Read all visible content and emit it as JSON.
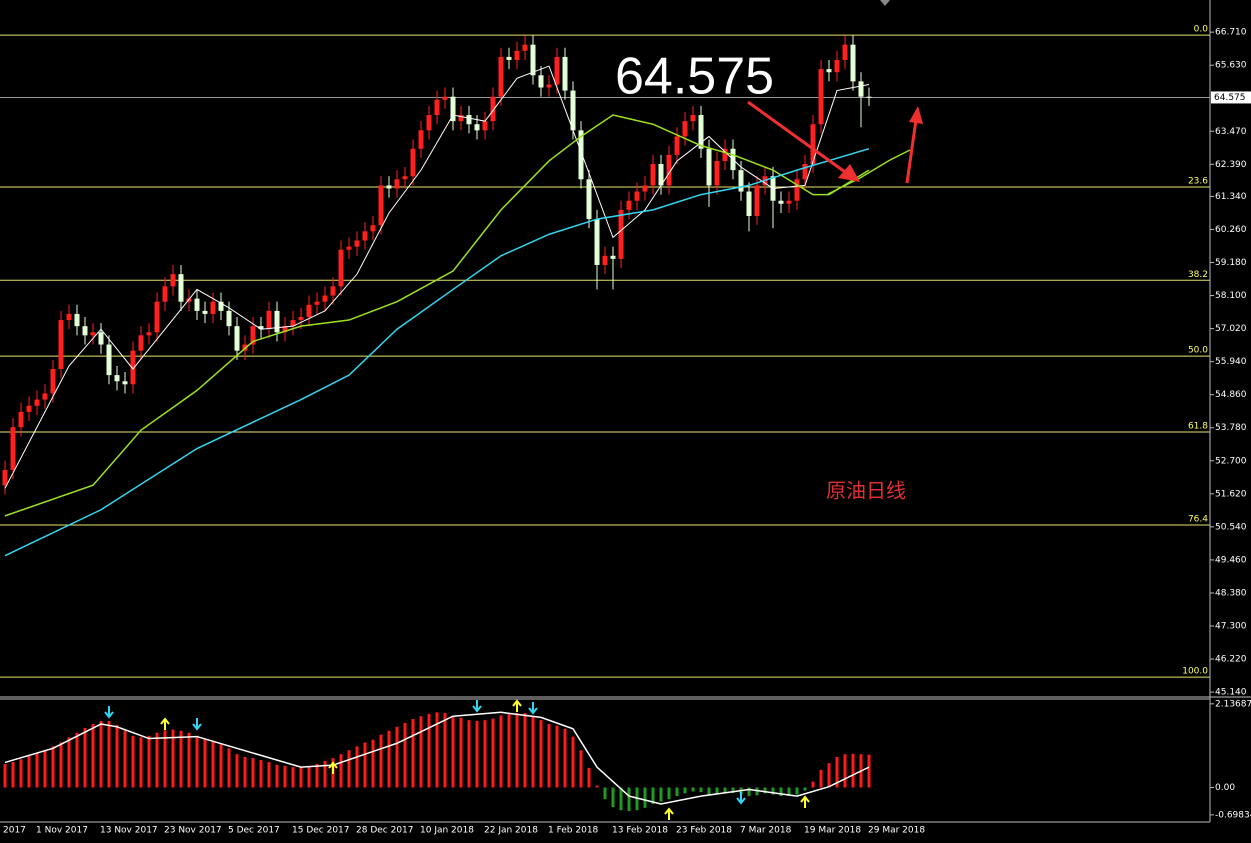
{
  "chart_data": [
    {
      "type": "candlestick",
      "categories": [
        "2017",
        null,
        null,
        null,
        "1 Nov 2017",
        null,
        null,
        null,
        null,
        null,
        null,
        null,
        "13 Nov 2017",
        null,
        null,
        null,
        null,
        null,
        null,
        null,
        "23 Nov 2017",
        null,
        null,
        null,
        null,
        null,
        null,
        null,
        "5 Dec 2017",
        null,
        null,
        null,
        null,
        null,
        null,
        null,
        "15 Dec 2017",
        null,
        null,
        null,
        null,
        null,
        null,
        null,
        "28 Dec 2017",
        null,
        null,
        null,
        null,
        null,
        null,
        null,
        "10 Jan 2018",
        null,
        null,
        null,
        null,
        null,
        null,
        null,
        "22 Jan 2018",
        null,
        null,
        null,
        null,
        null,
        null,
        null,
        "1 Feb 2018",
        null,
        null,
        null,
        null,
        null,
        null,
        null,
        "13 Feb 2018",
        null,
        null,
        null,
        null,
        null,
        null,
        null,
        "23 Feb 2018",
        null,
        null,
        null,
        null,
        null,
        null,
        null,
        "7 Mar 2018",
        null,
        null,
        null,
        null,
        null,
        null,
        null,
        "19 Mar 2018",
        null,
        null,
        null,
        null,
        null,
        null,
        null,
        "29 Mar 2018"
      ],
      "open": [
        51.9,
        52.4,
        53.8,
        54.3,
        54.5,
        54.7,
        54.9,
        55.7,
        57.3,
        57.5,
        57.1,
        56.8,
        56.9,
        56.5,
        55.5,
        55.3,
        55.2,
        56.3,
        56.8,
        56.9,
        57.9,
        58.4,
        58.8,
        57.9,
        58.0,
        57.6,
        57.5,
        57.9,
        57.6,
        57.1,
        56.3,
        56.5,
        57.1,
        57.0,
        57.6,
        56.9,
        57.1,
        57.3,
        57.4,
        57.8,
        57.9,
        58.1,
        58.4,
        59.6,
        59.7,
        59.9,
        60.2,
        60.4,
        61.7,
        61.6,
        61.9,
        62.0,
        62.9,
        63.5,
        64.0,
        64.5,
        64.6,
        63.8,
        64.0,
        63.7,
        63.5,
        63.8,
        64.6,
        65.9,
        65.8,
        66.1,
        66.3,
        65.3,
        64.9,
        65.0,
        65.9,
        64.8,
        63.5,
        61.9,
        60.6,
        59.1,
        59.4,
        59.3,
        60.9,
        61.2,
        61.5,
        61.7,
        62.4,
        61.7,
        62.7,
        63.3,
        63.8,
        64.0,
        62.9,
        61.7,
        62.5,
        62.9,
        62.2,
        61.5,
        60.7,
        61.7,
        62.0,
        61.2,
        61.1,
        61.2,
        61.9,
        62.4,
        63.7,
        65.5,
        65.4,
        65.8,
        66.3,
        65.1,
        64.6
      ],
      "high": [
        52.7,
        54.1,
        54.6,
        54.8,
        55.0,
        55.2,
        56.0,
        57.6,
        57.8,
        57.8,
        57.4,
        57.2,
        57.2,
        56.8,
        55.8,
        55.6,
        56.6,
        57.1,
        57.2,
        58.2,
        58.7,
        59.1,
        59.1,
        58.3,
        58.3,
        57.9,
        58.2,
        58.2,
        57.9,
        57.4,
        56.8,
        57.4,
        57.4,
        57.9,
        57.9,
        57.4,
        57.6,
        57.7,
        58.1,
        58.2,
        58.4,
        58.7,
        59.9,
        60.0,
        60.2,
        60.5,
        60.7,
        62.0,
        62.0,
        62.2,
        62.3,
        63.2,
        63.8,
        64.3,
        64.8,
        64.9,
        64.9,
        64.3,
        64.3,
        64.0,
        64.1,
        64.9,
        66.2,
        66.2,
        66.4,
        66.6,
        66.6,
        65.6,
        65.3,
        66.2,
        66.2,
        65.1,
        63.8,
        62.2,
        60.9,
        59.7,
        59.7,
        61.2,
        61.5,
        61.8,
        62.0,
        62.7,
        62.7,
        63.0,
        63.6,
        64.1,
        64.3,
        64.3,
        63.2,
        62.8,
        63.2,
        63.2,
        62.5,
        61.8,
        62.0,
        62.3,
        62.3,
        61.5,
        61.5,
        62.2,
        62.7,
        64.0,
        65.8,
        65.8,
        66.1,
        66.6,
        66.6,
        65.4,
        64.9
      ],
      "low": [
        51.6,
        52.1,
        53.5,
        54.0,
        54.2,
        54.4,
        54.6,
        55.4,
        57.0,
        56.8,
        56.5,
        56.5,
        56.2,
        55.2,
        55.0,
        54.9,
        54.9,
        56.0,
        56.5,
        56.6,
        57.6,
        58.1,
        57.6,
        57.6,
        57.3,
        57.2,
        57.2,
        57.3,
        56.8,
        56.0,
        56.0,
        56.2,
        56.7,
        56.7,
        56.6,
        56.6,
        56.8,
        57.0,
        57.1,
        57.5,
        57.6,
        57.8,
        58.1,
        59.3,
        59.4,
        59.6,
        59.9,
        60.1,
        61.3,
        61.3,
        61.6,
        61.7,
        62.6,
        63.2,
        63.7,
        64.2,
        63.5,
        63.5,
        63.4,
        63.2,
        63.2,
        63.5,
        64.3,
        65.5,
        65.5,
        65.8,
        65.0,
        64.6,
        64.6,
        64.7,
        64.5,
        63.2,
        61.6,
        60.3,
        58.3,
        58.8,
        58.3,
        59.0,
        60.6,
        60.9,
        61.2,
        61.4,
        61.4,
        61.4,
        62.4,
        63.0,
        63.5,
        62.6,
        61.0,
        61.4,
        62.2,
        61.9,
        61.2,
        60.2,
        60.4,
        61.4,
        60.3,
        60.8,
        60.8,
        60.9,
        61.6,
        62.1,
        63.4,
        65.1,
        65.1,
        65.5,
        64.8,
        63.6,
        64.3
      ],
      "close": [
        52.4,
        53.8,
        54.3,
        54.5,
        54.7,
        54.9,
        55.7,
        57.3,
        57.5,
        57.1,
        56.8,
        56.9,
        56.5,
        55.5,
        55.3,
        55.2,
        56.3,
        56.8,
        56.9,
        57.9,
        58.4,
        58.8,
        57.9,
        58.0,
        57.6,
        57.5,
        57.9,
        57.6,
        57.1,
        56.3,
        56.5,
        57.1,
        57.0,
        57.6,
        56.9,
        57.1,
        57.3,
        57.4,
        57.8,
        57.9,
        58.1,
        58.4,
        59.6,
        59.7,
        59.9,
        60.2,
        60.4,
        61.7,
        61.6,
        61.9,
        62.0,
        62.9,
        63.5,
        64.0,
        64.5,
        64.6,
        63.8,
        64.0,
        63.7,
        63.5,
        63.8,
        64.6,
        65.9,
        65.8,
        66.1,
        66.3,
        65.3,
        64.9,
        65.0,
        65.9,
        64.8,
        63.5,
        61.9,
        60.6,
        59.1,
        59.4,
        59.3,
        60.9,
        61.2,
        61.5,
        61.7,
        62.4,
        61.7,
        62.7,
        63.3,
        63.8,
        64.0,
        62.9,
        61.7,
        62.5,
        62.9,
        62.2,
        61.5,
        60.7,
        61.7,
        62.0,
        61.2,
        61.1,
        61.2,
        61.9,
        62.4,
        63.7,
        65.5,
        65.4,
        65.8,
        66.3,
        65.1,
        64.6,
        64.575
      ],
      "up_color": "#ff2020",
      "down_color": "#e2ffd6",
      "ylim": [
        44.98,
        67.76
      ],
      "yticks": [
        {
          "value": 66.71,
          "label": "66.710"
        },
        {
          "value": 65.63,
          "label": "65.630"
        },
        {
          "value": 63.47,
          "label": "63.470"
        },
        {
          "value": 62.39,
          "label": "62.390"
        },
        {
          "value": 61.34,
          "label": "61.340"
        },
        {
          "value": 60.26,
          "label": "60.260"
        },
        {
          "value": 59.18,
          "label": "59.180"
        },
        {
          "value": 58.1,
          "label": "58.100"
        },
        {
          "value": 57.02,
          "label": "57.020"
        },
        {
          "value": 55.94,
          "label": "55.940"
        },
        {
          "value": 54.86,
          "label": "54.860"
        },
        {
          "value": 53.78,
          "label": "53.780"
        },
        {
          "value": 52.7,
          "label": "52.700"
        },
        {
          "value": 51.62,
          "label": "51.620"
        },
        {
          "value": 50.54,
          "label": "50.540"
        },
        {
          "value": 49.46,
          "label": "49.460"
        },
        {
          "value": 48.38,
          "label": "48.380"
        },
        {
          "value": 47.3,
          "label": "47.300"
        },
        {
          "value": 46.22,
          "label": "46.220"
        },
        {
          "value": 45.14,
          "label": "45.140"
        }
      ],
      "current_price": 64.575,
      "fib_color": "#e6e66a",
      "fib_levels": [
        {
          "value": 66.61,
          "label": "0.0"
        },
        {
          "value": 61.65,
          "label": "23.6"
        },
        {
          "value": 58.6,
          "label": "38.2"
        },
        {
          "value": 56.12,
          "label": "50.0"
        },
        {
          "value": 53.64,
          "label": "61.8"
        },
        {
          "value": 50.6,
          "label": "76.4"
        },
        {
          "value": 45.63,
          "label": "100.0"
        }
      ],
      "moving_averages": [
        {
          "color": "#ffffff",
          "x": [
            0,
            4,
            8,
            12,
            16,
            20,
            24,
            28,
            32,
            36,
            40,
            44,
            48,
            52,
            56,
            60,
            64,
            68,
            72,
            76,
            80,
            84,
            88,
            92,
            96,
            100,
            104,
            108
          ],
          "values": [
            51.8,
            53.8,
            55.8,
            57.0,
            55.7,
            57.0,
            58.3,
            57.7,
            57.0,
            57.1,
            57.6,
            58.8,
            60.8,
            62.2,
            64.0,
            63.8,
            65.2,
            65.6,
            62.8,
            60.0,
            60.9,
            62.5,
            63.3,
            62.3,
            61.6,
            61.7,
            64.8,
            65.0
          ]
        },
        {
          "color": "#9be21e",
          "x": [
            0,
            11,
            17,
            24,
            31,
            37,
            43,
            49,
            56,
            62,
            68,
            72,
            76,
            81,
            87,
            91,
            96,
            101,
            103,
            108
          ],
          "values": [
            50.9,
            51.9,
            53.7,
            55.0,
            56.6,
            57.1,
            57.3,
            57.9,
            58.9,
            60.9,
            62.5,
            63.3,
            64.0,
            63.7,
            63.0,
            62.7,
            62.2,
            61.4,
            61.4,
            62.2
          ]
        },
        {
          "color": "#33d6f0",
          "x": [
            0,
            12,
            24,
            37,
            43,
            49,
            56,
            62,
            68,
            74,
            81,
            87,
            93,
            99,
            108
          ],
          "values": [
            49.6,
            51.1,
            53.1,
            54.7,
            55.5,
            57.0,
            58.3,
            59.4,
            60.1,
            60.6,
            60.9,
            61.4,
            61.7,
            62.2,
            62.9
          ]
        }
      ],
      "annotations": {
        "price": "64.575",
        "label": "原油日线"
      }
    },
    {
      "type": "bar",
      "color": "#ff1a1a",
      "negative_color": "#1f9a1f",
      "ylim": [
        -0.83,
        2.26
      ],
      "yticks": [
        2.13687,
        {
          "value": 0,
          "label": "0.00"
        },
        -0.69834
      ],
      "values": [
        0.6,
        0.65,
        0.72,
        0.8,
        0.88,
        0.96,
        1.05,
        1.15,
        1.28,
        1.4,
        1.52,
        1.62,
        1.7,
        1.7,
        1.6,
        1.45,
        1.32,
        1.28,
        1.32,
        1.4,
        1.46,
        1.48,
        1.45,
        1.4,
        1.32,
        1.25,
        1.2,
        1.1,
        1.0,
        0.85,
        0.78,
        0.75,
        0.7,
        0.65,
        0.58,
        0.55,
        0.52,
        0.52,
        0.55,
        0.6,
        0.68,
        0.75,
        0.85,
        0.95,
        1.05,
        1.15,
        1.22,
        1.35,
        1.45,
        1.55,
        1.65,
        1.75,
        1.82,
        1.88,
        1.92,
        1.9,
        1.82,
        1.78,
        1.72,
        1.7,
        1.72,
        1.76,
        1.84,
        1.88,
        1.9,
        1.9,
        1.82,
        1.72,
        1.62,
        1.58,
        1.5,
        1.3,
        0.95,
        0.5,
        0.05,
        -0.3,
        -0.5,
        -0.58,
        -0.6,
        -0.58,
        -0.52,
        -0.42,
        -0.36,
        -0.3,
        -0.22,
        -0.15,
        -0.1,
        -0.12,
        -0.2,
        -0.18,
        -0.14,
        -0.14,
        -0.17,
        -0.22,
        -0.2,
        -0.15,
        -0.18,
        -0.22,
        -0.22,
        -0.18,
        -0.08,
        0.15,
        0.45,
        0.62,
        0.78,
        0.85,
        0.86,
        0.85,
        0.84
      ],
      "signal": {
        "color": "#ffffff",
        "x": [
          0,
          6,
          12,
          14,
          18,
          24,
          31,
          37,
          41,
          49,
          56,
          62,
          67,
          71,
          74,
          78,
          82,
          87,
          93,
          99,
          103,
          108
        ],
        "values": [
          0.64,
          1.0,
          1.62,
          1.55,
          1.25,
          1.3,
          0.88,
          0.52,
          0.57,
          1.13,
          1.82,
          1.92,
          1.79,
          1.5,
          0.52,
          -0.22,
          -0.42,
          -0.22,
          -0.05,
          -0.22,
          0.02,
          0.52
        ]
      }
    }
  ]
}
